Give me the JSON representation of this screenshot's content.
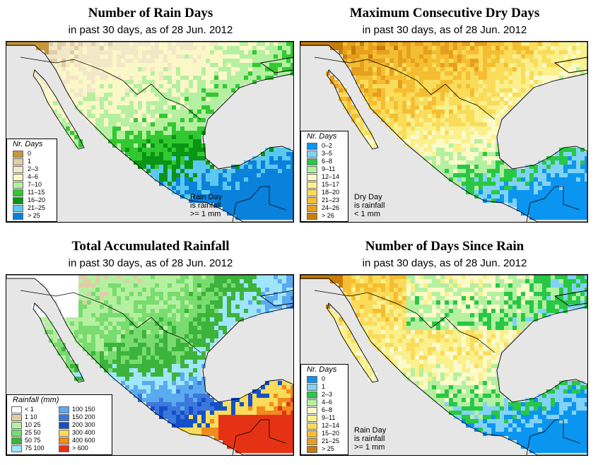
{
  "panels": [
    {
      "title": "Number of Rain Days",
      "subtitle": "in past 30 days, as of  28 Jun. 2012",
      "legend_title": "Nr. Days",
      "legend": [
        {
          "label": "0",
          "color": "#c8963c"
        },
        {
          "label": "1",
          "color": "#e1cda8"
        },
        {
          "label": "2–3",
          "color": "#f2e8c8"
        },
        {
          "label": "4–6",
          "color": "#fbf8c8"
        },
        {
          "label": "7–10",
          "color": "#b4f0a0"
        },
        {
          "label": "11–15",
          "color": "#32c832"
        },
        {
          "label": "16–20",
          "color": "#0a9614"
        },
        {
          "label": "21–25",
          "color": "#5ac8f0"
        },
        {
          "label": "> 25",
          "color": "#0a82dc"
        }
      ],
      "note": [
        "Rain Day",
        "is rainfall",
        ">= 1 mm"
      ]
    },
    {
      "title": "Maximum Consecutive Dry Days",
      "subtitle": "in past 30 days, as of  28 Jun. 2012",
      "legend_title": "Nr. Days",
      "legend": [
        {
          "label": "0–2",
          "color": "#0a96f0"
        },
        {
          "label": "3–5",
          "color": "#82d2f5"
        },
        {
          "label": "6–8",
          "color": "#28c846"
        },
        {
          "label": "9–11",
          "color": "#b4f0a0"
        },
        {
          "label": "12–14",
          "color": "#fbfac8"
        },
        {
          "label": "15–17",
          "color": "#faf08c"
        },
        {
          "label": "18–20",
          "color": "#fadc5a"
        },
        {
          "label": "21–23",
          "color": "#f5be32"
        },
        {
          "label": "24–26",
          "color": "#e6a01e"
        },
        {
          "label": "> 26",
          "color": "#c87d0a"
        }
      ],
      "note": [
        "Dry Day",
        "is rainfall",
        "< 1 mm"
      ]
    },
    {
      "title": "Total Accumulated Rainfall",
      "subtitle": "in past 30 days, as of  28 Jun. 2012",
      "legend_title": "Rainfall (mm)",
      "legend": [
        {
          "label": "< 1",
          "color": "#ffffff"
        },
        {
          "label": "1   10",
          "color": "#e1cda8"
        },
        {
          "label": "10   25",
          "color": "#b4f0a0"
        },
        {
          "label": "25   50",
          "color": "#78dc6e"
        },
        {
          "label": "50   75",
          "color": "#3cb43c"
        },
        {
          "label": "75  100",
          "color": "#a0e6fa"
        },
        {
          "label": "100  150",
          "color": "#5aaaf0"
        },
        {
          "label": "150  200",
          "color": "#3c78dc"
        },
        {
          "label": "200  300",
          "color": "#1450c8"
        },
        {
          "label": "300  400",
          "color": "#fadc5a"
        },
        {
          "label": "400  600",
          "color": "#f08c1e"
        },
        {
          "label": "> 600",
          "color": "#e63214"
        }
      ],
      "note": []
    },
    {
      "title": "Number of Days Since Rain",
      "subtitle": "in past 30 days, as of  28 Jun. 2012",
      "legend_title": "Nr. Days",
      "legend": [
        {
          "label": "0",
          "color": "#0a96f0"
        },
        {
          "label": "1",
          "color": "#82d2f5"
        },
        {
          "label": "2–3",
          "color": "#28c846"
        },
        {
          "label": "4–6",
          "color": "#b4f0a0"
        },
        {
          "label": "6–8",
          "color": "#fbfac8"
        },
        {
          "label": "9–11",
          "color": "#faf08c"
        },
        {
          "label": "12–14",
          "color": "#fadc5a"
        },
        {
          "label": "15–20",
          "color": "#f5be32"
        },
        {
          "label": "21–25",
          "color": "#e6a01e"
        },
        {
          "label": "> 25",
          "color": "#c87d0a"
        }
      ],
      "note": [
        "Rain Day",
        "is rainfall",
        ">= 1 mm"
      ]
    }
  ]
}
